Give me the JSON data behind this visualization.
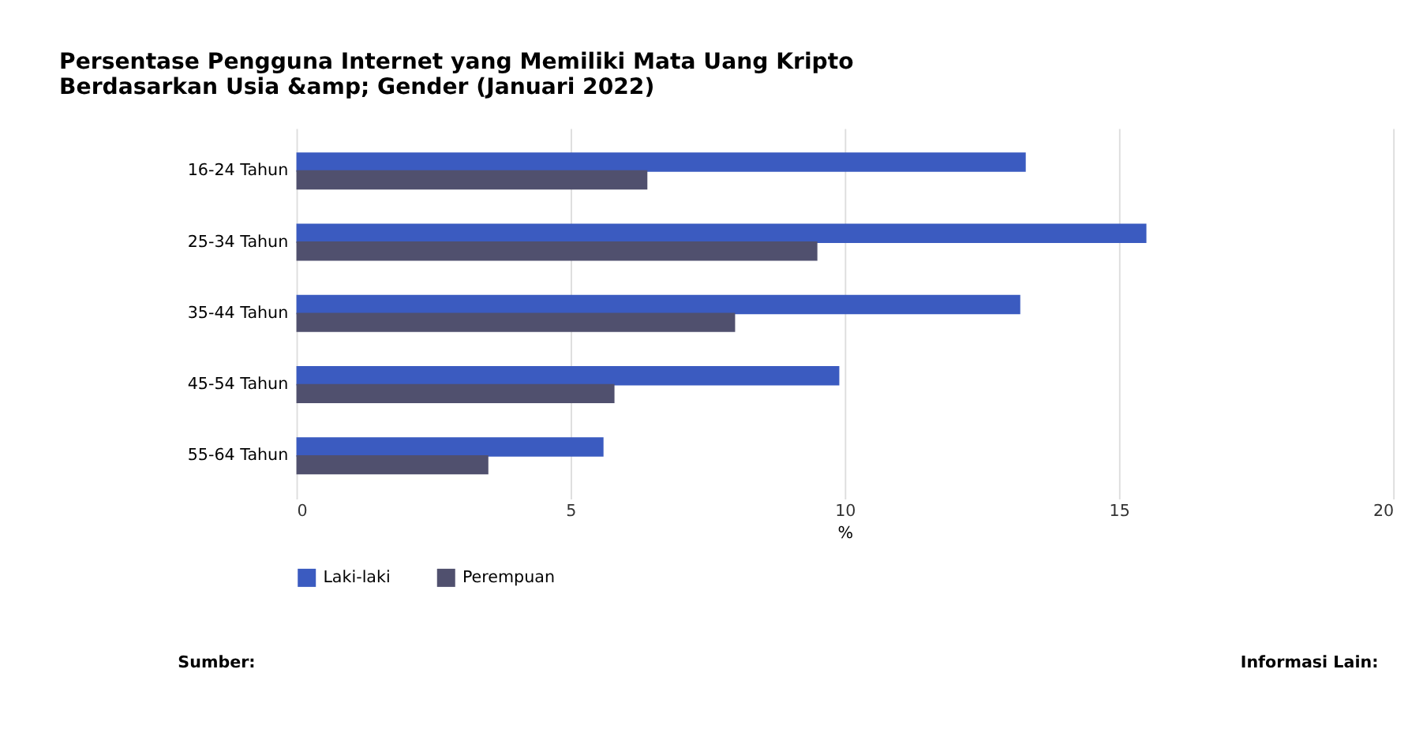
{
  "chart_data": {
    "type": "bar",
    "orientation": "horizontal",
    "title": "Persentase Pengguna Internet yang Memiliki Mata Uang Kripto\nBerdasarkan Usia &amp; Gender (Januari 2022)",
    "xlabel": "%",
    "categories": [
      "16-24 Tahun",
      "25-34 Tahun",
      "35-44 Tahun",
      "45-54 Tahun",
      "55-64 Tahun"
    ],
    "series": [
      {
        "name": "Laki-laki",
        "color": "#3b5bc0",
        "values": [
          13.3,
          15.5,
          13.2,
          9.9,
          5.6
        ]
      },
      {
        "name": "Perempuan",
        "color": "#50506e",
        "values": [
          6.4,
          9.5,
          8.0,
          5.8,
          3.5
        ]
      }
    ],
    "xlim": [
      0,
      20
    ],
    "xticks": [
      0,
      5,
      10,
      15,
      20
    ],
    "grid": "x",
    "legend": "bottom",
    "annotations": [
      "Sumber:",
      "Informasi Lain:"
    ]
  }
}
